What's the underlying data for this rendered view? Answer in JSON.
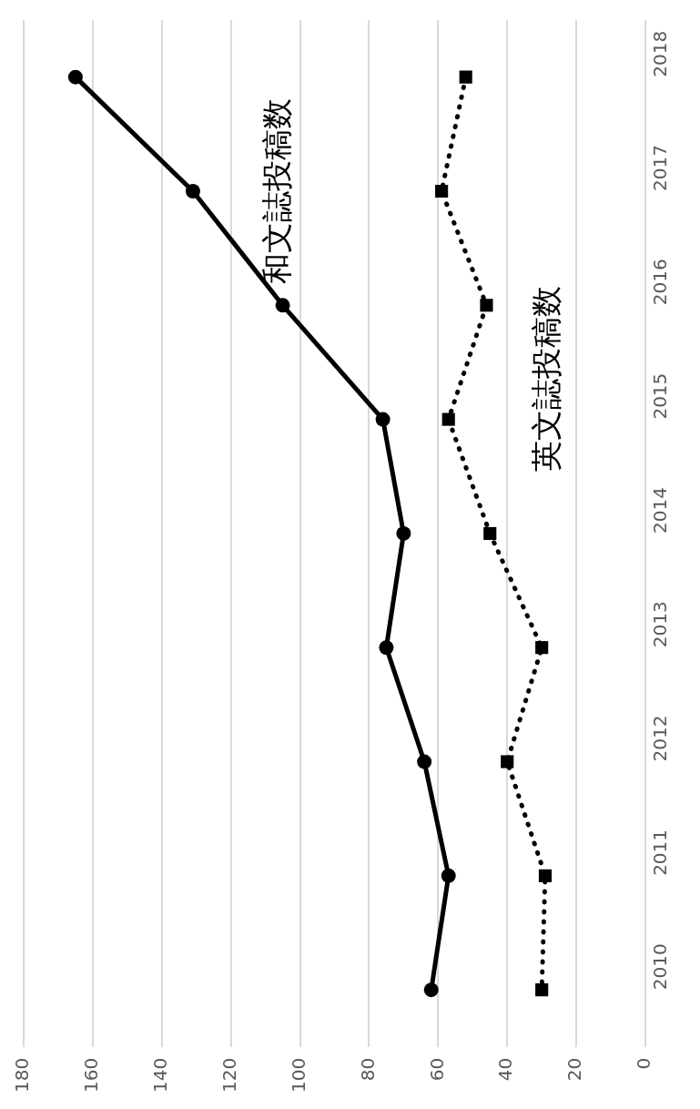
{
  "chart_data": {
    "type": "line",
    "orientation": "horizontal",
    "categories": [
      "2018",
      "2017",
      "2016",
      "2015",
      "2014",
      "2013",
      "2012",
      "2011",
      "2010"
    ],
    "series": [
      {
        "name": "和文誌投稿数",
        "color": "#000000",
        "marker": "circle",
        "line_style": "solid",
        "values": [
          165,
          131,
          105,
          76,
          70,
          75,
          64,
          57,
          62
        ]
      },
      {
        "name": "英文誌投稿数",
        "color": "#000000",
        "marker": "square",
        "line_style": "dotted",
        "values": [
          52,
          59,
          46,
          57,
          45,
          30,
          40,
          29,
          30
        ]
      }
    ],
    "xlim": [
      180,
      0
    ],
    "xticks": [
      0,
      20,
      40,
      60,
      80,
      100,
      120,
      140,
      160,
      180
    ],
    "grid": "x",
    "legend": false
  }
}
